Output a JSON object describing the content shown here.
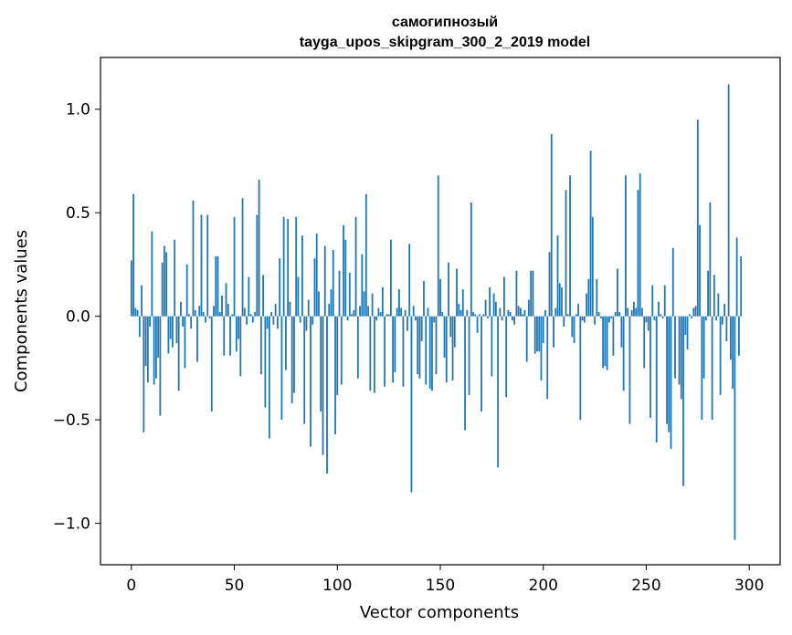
{
  "chart_data": {
    "type": "bar",
    "title": "самогипнозый",
    "subtitle": "tayga_upos_skipgram_300_2_2019 model",
    "xlabel": "Vector components",
    "ylabel": "Components values",
    "xlim": [
      -15,
      315
    ],
    "ylim": [
      -1.2,
      1.25
    ],
    "xticks": [
      0,
      50,
      100,
      150,
      200,
      250,
      300
    ],
    "yticks": [
      -1.0,
      -0.5,
      0.0,
      0.5,
      1.0
    ],
    "ytick_labels": [
      "−1.0",
      "−0.5",
      "0.0",
      "0.5",
      "1.0"
    ],
    "grid": false,
    "color": "#1f77b4",
    "series": [
      {
        "values": [
          0.27,
          0.59,
          0.04,
          0.03,
          -0.1,
          0.15,
          -0.56,
          -0.24,
          -0.32,
          -0.05,
          0.41,
          -0.33,
          -0.3,
          -0.2,
          -0.48,
          0.26,
          0.34,
          0.31,
          -0.18,
          -0.11,
          -0.15,
          0.37,
          -0.13,
          -0.36,
          0.07,
          -0.05,
          -0.25,
          0.25,
          0.01,
          -0.06,
          0.56,
          0.03,
          -0.22,
          0.05,
          0.49,
          0.02,
          -0.03,
          0.49,
          -0.01,
          -0.46,
          0.05,
          0.29,
          0.29,
          0.02,
          0.1,
          -0.19,
          0.16,
          0.06,
          -0.19,
          0.01,
          0.48,
          -0.17,
          -0.11,
          -0.29,
          0.57,
          0.04,
          -0.04,
          0.19,
          0.01,
          -0.03,
          0.02,
          0.49,
          0.66,
          -0.28,
          0.2,
          -0.44,
          -0.06,
          -0.59,
          0.02,
          -0.04,
          0.06,
          -0.06,
          0.28,
          -0.5,
          0.48,
          -0.26,
          0.47,
          0.07,
          -0.42,
          -0.37,
          0.48,
          0.19,
          -0.03,
          0.39,
          -0.52,
          -0.07,
          0.08,
          -0.63,
          -0.04,
          0.28,
          0.4,
          0.12,
          -0.46,
          -0.67,
          0.34,
          -0.76,
          0.06,
          0.13,
          0.32,
          -0.57,
          -0.38,
          0.22,
          -0.33,
          0.44,
          0.37,
          -0.02,
          0.21,
          0.01,
          0.03,
          0.48,
          -0.3,
          0.05,
          0.3,
          0.12,
          0.59,
          0.05,
          -0.36,
          0.11,
          -0.37,
          -0.02,
          0.04,
          0.02,
          0.14,
          -0.34,
          0.01,
          0.01,
          0.37,
          -0.32,
          -0.27,
          0.04,
          0.13,
          0.04,
          -0.34,
          0.03,
          -0.07,
          0.35,
          -0.85,
          0.05,
          -0.02,
          -0.28,
          -0.3,
          -0.12,
          0.17,
          -0.33,
          0.04,
          -0.35,
          -0.36,
          -0.03,
          -0.28,
          0.68,
          0.18,
          0.02,
          -0.2,
          -0.32,
          0.26,
          -0.1,
          -0.31,
          -0.15,
          0.23,
          0.06,
          0.03,
          0.13,
          -0.55,
          0.03,
          -0.38,
          0.55,
          0.02,
          0.01,
          -0.08,
          0.01,
          -0.46,
          0.01,
          0.08,
          -0.01,
          0.14,
          -0.29,
          0.11,
          0.07,
          -0.73,
          0.04,
          -0.02,
          0.19,
          -0.39,
          0.03,
          0.02,
          -0.02,
          -0.04,
          0.22,
          0.05,
          0.04,
          0.01,
          0.03,
          -0.22,
          0.08,
          0.22,
          0.22,
          -0.18,
          -0.17,
          -0.17,
          -0.31,
          -0.13,
          0.03,
          -0.4,
          0.31,
          0.88,
          -0.15,
          0.04,
          0.39,
          0.16,
          0.14,
          -0.05,
          0.61,
          0.01,
          0.68,
          -0.1,
          -0.13,
          0.01,
          0.06,
          -0.5,
          -0.02,
          -0.03,
          0.11,
          0.18,
          0.8,
          0.48,
          -0.04,
          0.18,
          0.02,
          -0.01,
          -0.25,
          -0.24,
          -0.26,
          -0.03,
          -0.01,
          -0.19,
          0.02,
          0.23,
          0.02,
          -0.15,
          -0.36,
          0.68,
          0.04,
          -0.52,
          0.03,
          0.07,
          0.04,
          0.61,
          0.69,
          0.04,
          -0.25,
          -0.03,
          -0.07,
          -0.49,
          0.15,
          -0.02,
          -0.61,
          0.07,
          0.01,
          -0.01,
          0.15,
          -0.52,
          -0.56,
          -0.64,
          0.33,
          -0.3,
          0.0,
          -0.33,
          -0.4,
          -0.82,
          -0.09,
          -0.16,
          0.01,
          -0.01,
          0.04,
          0.05,
          0.95,
          0.44,
          -0.5,
          -0.3,
          -0.02,
          0.22,
          0.55,
          -0.5,
          0.2,
          -0.02,
          0.11,
          -0.38,
          -0.04,
          0.06,
          -0.12,
          1.12,
          -0.21,
          -0.35,
          -1.08,
          0.38,
          -0.19,
          0.29,
          0.0
        ]
      }
    ]
  }
}
